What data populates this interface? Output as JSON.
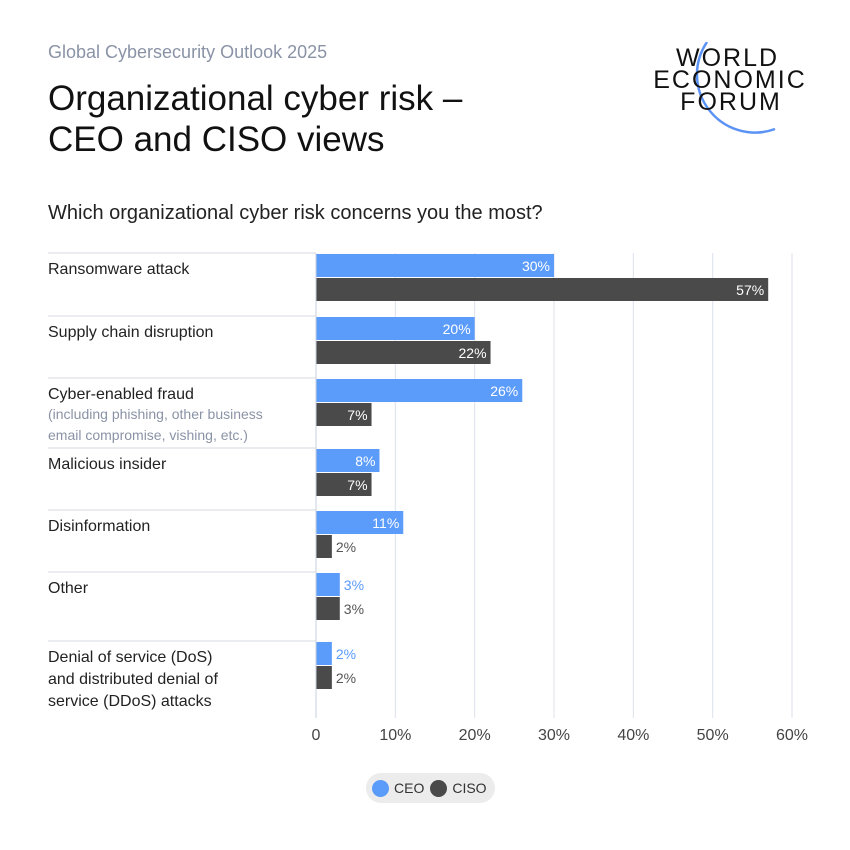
{
  "header": {
    "subtitle": "Global Cybersecurity Outlook 2025",
    "title_line1": "Organizational cyber risk –",
    "title_line2": "CEO and CISO views",
    "question": "Which organizational cyber risk concerns you the most?"
  },
  "logo": {
    "line1": "WORLD",
    "line2": "ECONOMIC",
    "line3": "FORUM",
    "arc_color": "#5b93f5"
  },
  "chart_data": {
    "type": "bar",
    "orientation": "horizontal",
    "categories": [
      "Ransomware attack",
      "Supply chain disruption",
      "Cyber-enabled fraud",
      "Malicious insider",
      "Disinformation",
      "Other",
      "Denial of service (DoS) and distributed denial of service (DDoS) attacks"
    ],
    "category_notes": [
      "",
      "",
      "(including phishing, other business email compromise, vishing, etc.)",
      "",
      "",
      "",
      ""
    ],
    "series": [
      {
        "name": "CEO",
        "color": "#5b9bfa",
        "values": [
          30,
          20,
          26,
          8,
          11,
          3,
          2
        ]
      },
      {
        "name": "CISO",
        "color": "#4a4a4a",
        "values": [
          57,
          22,
          7,
          7,
          2,
          3,
          2
        ]
      }
    ],
    "xlim": [
      0,
      60
    ],
    "xticks": [
      "0",
      "10%",
      "20%",
      "30%",
      "40%",
      "50%",
      "60%"
    ],
    "grid": true,
    "legend": "bottom-center"
  }
}
